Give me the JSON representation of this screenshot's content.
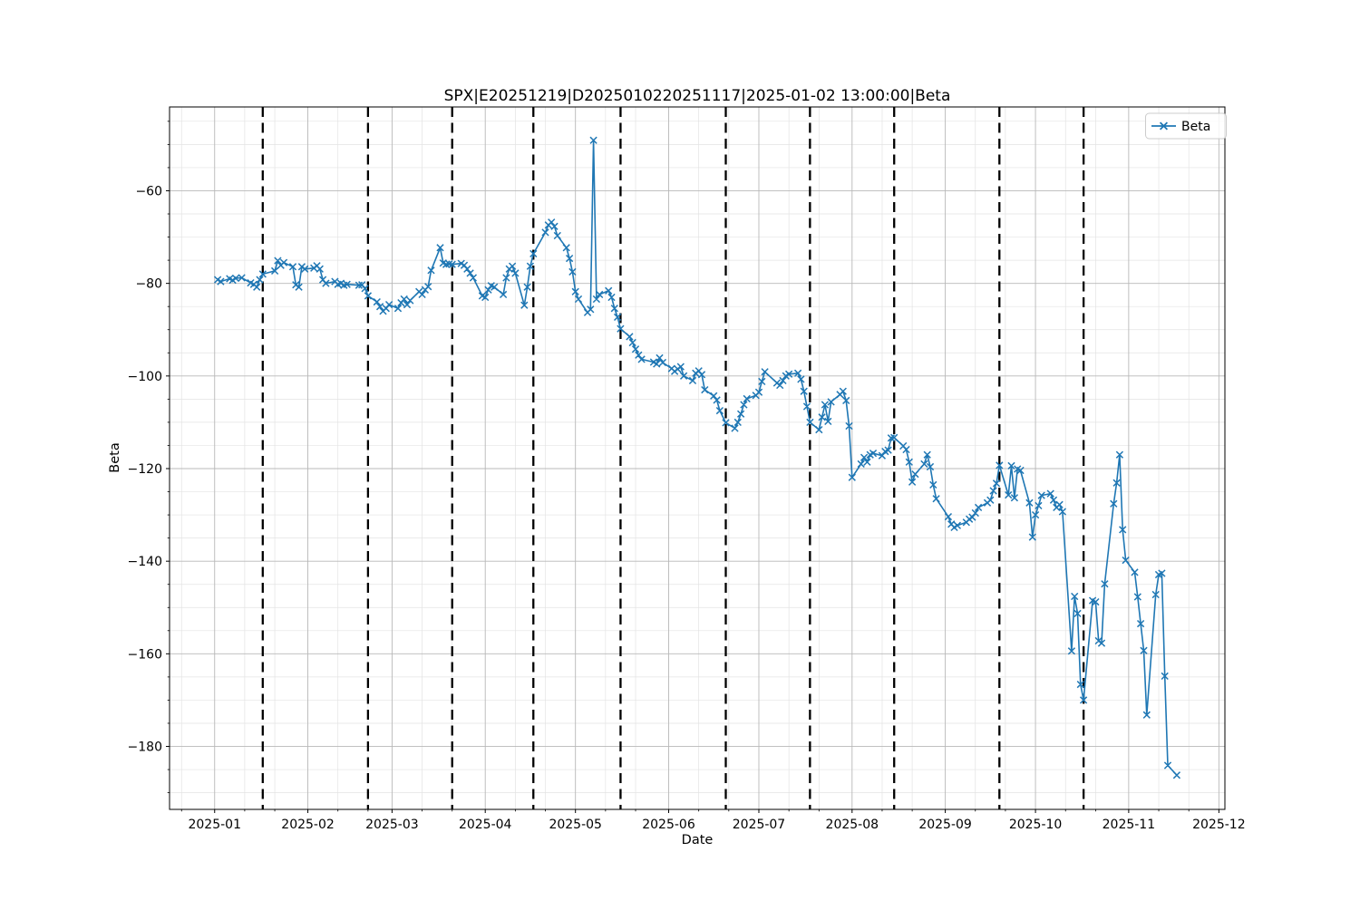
{
  "chart_data": {
    "type": "line",
    "title": "SPX|E20251219|D2025010220251117|2025-01-02 13:00:00|Beta",
    "xlabel": "Date",
    "ylabel": "Beta",
    "legend": {
      "position": "upper right",
      "entries": [
        "Beta"
      ]
    },
    "line_color": "#1f77b4",
    "marker": "x",
    "grid": true,
    "xtick_labels": [
      "2025-01",
      "2025-02",
      "2025-03",
      "2025-04",
      "2025-05",
      "2025-06",
      "2025-07",
      "2025-08",
      "2025-09",
      "2025-10",
      "2025-11",
      "2025-12"
    ],
    "ytick_values": [
      -60,
      -80,
      -100,
      -120,
      -140,
      -160,
      -180
    ],
    "ylim": [
      -193.6,
      -41.9
    ],
    "xlim_days_from_2025_01_01": [
      -15,
      336
    ],
    "expiry_vlines_dashed_black": [
      "2025-01-17",
      "2025-02-21",
      "2025-03-21",
      "2025-04-17",
      "2025-05-16",
      "2025-06-20",
      "2025-07-18",
      "2025-08-15",
      "2025-09-19",
      "2025-10-17"
    ],
    "x": [
      "2025-01-02",
      "2025-01-03",
      "2025-01-06",
      "2025-01-07",
      "2025-01-08",
      "2025-01-10",
      "2025-01-13",
      "2025-01-14",
      "2025-01-15",
      "2025-01-16",
      "2025-01-17",
      "2025-01-21",
      "2025-01-22",
      "2025-01-23",
      "2025-01-24",
      "2025-01-27",
      "2025-01-28",
      "2025-01-29",
      "2025-01-30",
      "2025-01-31",
      "2025-02-03",
      "2025-02-04",
      "2025-02-05",
      "2025-02-06",
      "2025-02-07",
      "2025-02-10",
      "2025-02-11",
      "2025-02-12",
      "2025-02-13",
      "2025-02-14",
      "2025-02-18",
      "2025-02-19",
      "2025-02-20",
      "2025-02-21",
      "2025-02-24",
      "2025-02-25",
      "2025-02-26",
      "2025-02-27",
      "2025-02-28",
      "2025-03-03",
      "2025-03-04",
      "2025-03-05",
      "2025-03-06",
      "2025-03-07",
      "2025-03-10",
      "2025-03-11",
      "2025-03-12",
      "2025-03-13",
      "2025-03-14",
      "2025-03-17",
      "2025-03-18",
      "2025-03-19",
      "2025-03-20",
      "2025-03-21",
      "2025-03-24",
      "2025-03-25",
      "2025-03-26",
      "2025-03-27",
      "2025-03-28",
      "2025-03-31",
      "2025-04-01",
      "2025-04-02",
      "2025-04-03",
      "2025-04-04",
      "2025-04-07",
      "2025-04-08",
      "2025-04-09",
      "2025-04-10",
      "2025-04-11",
      "2025-04-14",
      "2025-04-15",
      "2025-04-16",
      "2025-04-17",
      "2025-04-21",
      "2025-04-22",
      "2025-04-23",
      "2025-04-24",
      "2025-04-25",
      "2025-04-28",
      "2025-04-29",
      "2025-04-30",
      "2025-05-01",
      "2025-05-02",
      "2025-05-05",
      "2025-05-06",
      "2025-05-07",
      "2025-05-08",
      "2025-05-09",
      "2025-05-12",
      "2025-05-13",
      "2025-05-14",
      "2025-05-15",
      "2025-05-16",
      "2025-05-19",
      "2025-05-20",
      "2025-05-21",
      "2025-05-22",
      "2025-05-23",
      "2025-05-27",
      "2025-05-28",
      "2025-05-29",
      "2025-05-30",
      "2025-06-02",
      "2025-06-03",
      "2025-06-04",
      "2025-06-05",
      "2025-06-06",
      "2025-06-09",
      "2025-06-10",
      "2025-06-11",
      "2025-06-12",
      "2025-06-13",
      "2025-06-16",
      "2025-06-17",
      "2025-06-18",
      "2025-06-20",
      "2025-06-23",
      "2025-06-24",
      "2025-06-25",
      "2025-06-26",
      "2025-06-27",
      "2025-06-30",
      "2025-07-01",
      "2025-07-02",
      "2025-07-03",
      "2025-07-07",
      "2025-07-08",
      "2025-07-09",
      "2025-07-10",
      "2025-07-11",
      "2025-07-14",
      "2025-07-15",
      "2025-07-16",
      "2025-07-17",
      "2025-07-18",
      "2025-07-21",
      "2025-07-22",
      "2025-07-23",
      "2025-07-24",
      "2025-07-25",
      "2025-07-28",
      "2025-07-29",
      "2025-07-30",
      "2025-07-31",
      "2025-08-01",
      "2025-08-04",
      "2025-08-05",
      "2025-08-06",
      "2025-08-07",
      "2025-08-08",
      "2025-08-11",
      "2025-08-12",
      "2025-08-13",
      "2025-08-14",
      "2025-08-15",
      "2025-08-18",
      "2025-08-19",
      "2025-08-20",
      "2025-08-21",
      "2025-08-22",
      "2025-08-25",
      "2025-08-26",
      "2025-08-27",
      "2025-08-28",
      "2025-08-29",
      "2025-09-02",
      "2025-09-03",
      "2025-09-04",
      "2025-09-05",
      "2025-09-08",
      "2025-09-09",
      "2025-09-10",
      "2025-09-11",
      "2025-09-12",
      "2025-09-15",
      "2025-09-16",
      "2025-09-17",
      "2025-09-18",
      "2025-09-19",
      "2025-09-22",
      "2025-09-23",
      "2025-09-24",
      "2025-09-25",
      "2025-09-26",
      "2025-09-29",
      "2025-09-30",
      "2025-10-01",
      "2025-10-02",
      "2025-10-03",
      "2025-10-06",
      "2025-10-07",
      "2025-10-08",
      "2025-10-09",
      "2025-10-10",
      "2025-10-13",
      "2025-10-14",
      "2025-10-15",
      "2025-10-16",
      "2025-10-17",
      "2025-10-20",
      "2025-10-21",
      "2025-10-22",
      "2025-10-23",
      "2025-10-24",
      "2025-10-27",
      "2025-10-28",
      "2025-10-29",
      "2025-10-30",
      "2025-10-31",
      "2025-11-03",
      "2025-11-04",
      "2025-11-05",
      "2025-11-06",
      "2025-11-07",
      "2025-11-10",
      "2025-11-11",
      "2025-11-12",
      "2025-11-13",
      "2025-11-14",
      "2025-11-17"
    ],
    "series": [
      {
        "name": "Beta",
        "values": [
          -79.2,
          -79.6,
          -79.0,
          -79.3,
          -78.9,
          -78.8,
          -79.9,
          -80.2,
          -80.8,
          -79.2,
          -78.0,
          -77.3,
          -75.1,
          -76.1,
          -75.5,
          -76.4,
          -80.3,
          -80.8,
          -76.4,
          -76.9,
          -76.7,
          -76.2,
          -76.9,
          -79.2,
          -80.0,
          -79.6,
          -80.2,
          -80.0,
          -80.4,
          -80.2,
          -80.4,
          -80.3,
          -81.1,
          -82.7,
          -84.0,
          -85.0,
          -86.0,
          -85.4,
          -84.6,
          -85.4,
          -84.2,
          -83.4,
          -84.6,
          -83.7,
          -81.8,
          -82.4,
          -81.4,
          -80.7,
          -77.2,
          -72.3,
          -75.6,
          -75.9,
          -75.8,
          -75.9,
          -75.7,
          -76.1,
          -76.9,
          -77.8,
          -78.8,
          -82.7,
          -83.0,
          -81.4,
          -80.5,
          -80.8,
          -82.4,
          -78.8,
          -76.9,
          -76.3,
          -77.8,
          -84.7,
          -80.8,
          -76.3,
          -73.6,
          -69.0,
          -67.4,
          -66.8,
          -67.7,
          -69.7,
          -72.3,
          -74.6,
          -77.5,
          -81.8,
          -83.4,
          -86.3,
          -85.6,
          -49.1,
          -83.4,
          -82.4,
          -81.6,
          -83.0,
          -85.4,
          -87.3,
          -89.8,
          -91.5,
          -92.8,
          -94.2,
          -95.5,
          -96.4,
          -97.0,
          -97.4,
          -96.1,
          -97.1,
          -98.4,
          -99.0,
          -98.5,
          -98.0,
          -100.0,
          -101.0,
          -99.4,
          -98.9,
          -99.7,
          -103.0,
          -104.3,
          -105.2,
          -107.5,
          -110.1,
          -111.3,
          -110.0,
          -108.2,
          -106.2,
          -104.9,
          -104.2,
          -103.5,
          -101.2,
          -99.1,
          -101.5,
          -102.0,
          -101.0,
          -100.0,
          -99.6,
          -99.4,
          -100.7,
          -103.3,
          -106.6,
          -110.0,
          -111.6,
          -108.9,
          -106.2,
          -109.8,
          -105.6,
          -104.0,
          -103.3,
          -105.3,
          -110.8,
          -121.9,
          -119.0,
          -117.6,
          -118.6,
          -117.0,
          -116.7,
          -117.2,
          -116.3,
          -116.0,
          -113.4,
          -113.3,
          -115.1,
          -115.9,
          -118.6,
          -122.9,
          -121.2,
          -119.0,
          -117.0,
          -119.6,
          -123.5,
          -126.5,
          -130.4,
          -132.0,
          -132.7,
          -132.3,
          -131.6,
          -130.9,
          -130.5,
          -129.6,
          -128.4,
          -127.4,
          -126.8,
          -124.8,
          -123.2,
          -119.3,
          -125.7,
          -119.4,
          -126.3,
          -120.1,
          -120.4,
          -127.4,
          -134.8,
          -130.0,
          -128.0,
          -125.8,
          -125.4,
          -126.8,
          -128.4,
          -127.8,
          -129.3,
          -159.4,
          -147.6,
          -151.3,
          -166.6,
          -170.0,
          -148.5,
          -148.8,
          -157.2,
          -157.7,
          -144.9,
          -127.6,
          -123.1,
          -117.0,
          -133.2,
          -139.8,
          -142.4,
          -147.7,
          -153.5,
          -159.3,
          -173.2,
          -147.2,
          -142.9,
          -142.6,
          -164.8,
          -184.1,
          -186.2
        ]
      }
    ]
  },
  "style": {
    "major_grid_color": "#b8b8b8",
    "minor_grid_color": "#e3e3e3",
    "spine_color": "#000000",
    "vline_color": "#000000",
    "legend_border_color": "#cccccc"
  }
}
